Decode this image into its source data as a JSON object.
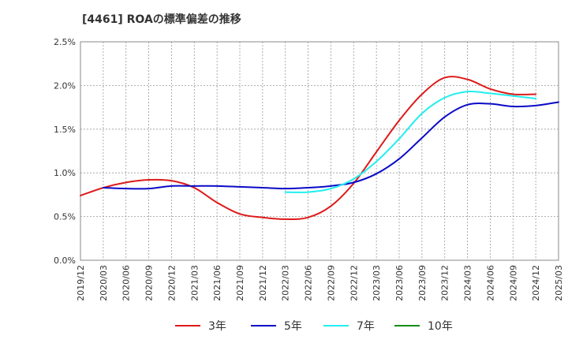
{
  "chart_data": {
    "type": "line",
    "title": "[4461]  ROAの標準偏差の推移",
    "ylim": [
      0.0,
      2.5
    ],
    "ytick_labels": [
      "0.0%",
      "0.5%",
      "1.0%",
      "1.5%",
      "2.0%",
      "2.5%"
    ],
    "xtick_labels": [
      "2019/12",
      "2020/03",
      "2020/06",
      "2020/09",
      "2020/12",
      "2021/03",
      "2021/06",
      "2021/09",
      "2021/12",
      "2022/03",
      "2022/06",
      "2022/09",
      "2022/12",
      "2023/03",
      "2023/06",
      "2023/09",
      "2023/12",
      "2024/03",
      "2024/06",
      "2024/09",
      "2024/12",
      "2025/03"
    ],
    "grid": true,
    "legend_position": "bottom",
    "series": [
      {
        "name": "3年",
        "color": "#dd1a1a",
        "start_index": 0,
        "values": [
          0.74,
          0.83,
          0.89,
          0.92,
          0.91,
          0.83,
          0.66,
          0.53,
          0.49,
          0.47,
          0.49,
          0.62,
          0.88,
          1.24,
          1.6,
          1.9,
          2.09,
          2.07,
          1.96,
          1.9,
          1.9
        ]
      },
      {
        "name": "5年",
        "color": "#0a0ac8",
        "start_index": 1,
        "values": [
          0.83,
          0.82,
          0.82,
          0.85,
          0.85,
          0.85,
          0.84,
          0.83,
          0.82,
          0.83,
          0.85,
          0.89,
          0.99,
          1.16,
          1.4,
          1.64,
          1.78,
          1.79,
          1.76,
          1.77,
          1.81
        ]
      },
      {
        "name": "7年",
        "color": "#22eeee",
        "start_index": 9,
        "values": [
          0.78,
          0.78,
          0.82,
          0.93,
          1.13,
          1.39,
          1.68,
          1.86,
          1.93,
          1.91,
          1.88,
          1.85
        ]
      },
      {
        "name": "10年",
        "color": "#158c15",
        "start_index": 0,
        "values": []
      }
    ]
  }
}
